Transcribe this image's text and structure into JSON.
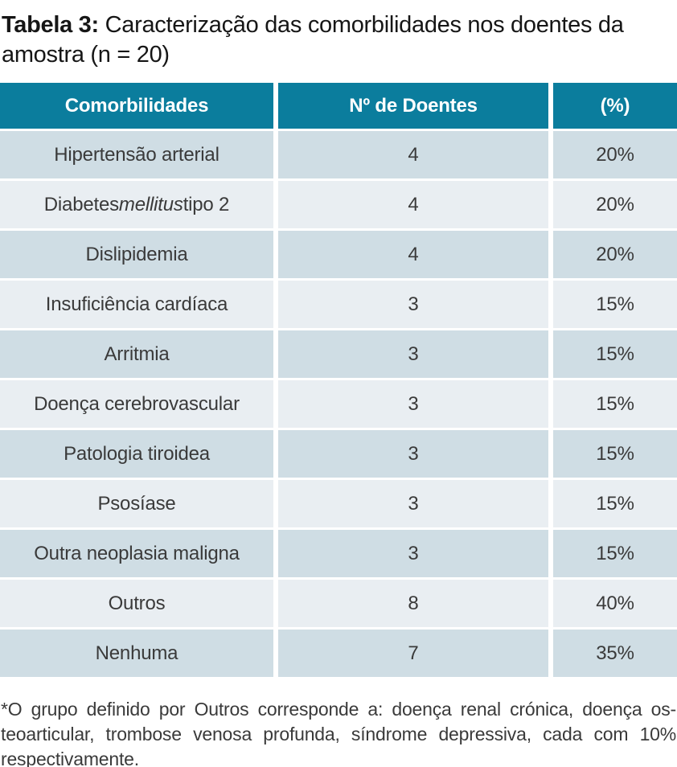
{
  "colors": {
    "page_bg": "#ffffff",
    "header_bg": "#0b7d9d",
    "header_text": "#ffffff",
    "row_dark": "#cfdde4",
    "row_light": "#e9eef2",
    "text": "#3a3a3a",
    "title_text": "#161616"
  },
  "title": {
    "bold": "Tabela 3:",
    "line1_rest": " Caracterização das comorbilidades nos doentes da",
    "line2": "amostra (n = 20)"
  },
  "table": {
    "headers": [
      "Comorbilidades",
      "Nº de Doentes",
      "(%)"
    ],
    "rows": [
      {
        "label_parts": [
          {
            "text": "Hipertensão arterial"
          }
        ],
        "n": "4",
        "pct": "20%"
      },
      {
        "label_parts": [
          {
            "text": "Diabetes "
          },
          {
            "text": "mellitus",
            "italic": true
          },
          {
            "text": " tipo 2"
          }
        ],
        "n": "4",
        "pct": "20%"
      },
      {
        "label_parts": [
          {
            "text": "Dislipidemia"
          }
        ],
        "n": "4",
        "pct": "20%"
      },
      {
        "label_parts": [
          {
            "text": "Insuficiência cardíaca"
          }
        ],
        "n": "3",
        "pct": "15%"
      },
      {
        "label_parts": [
          {
            "text": "Arritmia"
          }
        ],
        "n": "3",
        "pct": "15%"
      },
      {
        "label_parts": [
          {
            "text": "Doença cerebrovascular"
          }
        ],
        "n": "3",
        "pct": "15%"
      },
      {
        "label_parts": [
          {
            "text": "Patologia tiroidea"
          }
        ],
        "n": "3",
        "pct": "15%"
      },
      {
        "label_parts": [
          {
            "text": "Psosíase"
          }
        ],
        "n": "3",
        "pct": "15%"
      },
      {
        "label_parts": [
          {
            "text": "Outra neoplasia maligna"
          }
        ],
        "n": "3",
        "pct": "15%"
      },
      {
        "label_parts": [
          {
            "text": "Outros"
          }
        ],
        "n": "8",
        "pct": "40%"
      },
      {
        "label_parts": [
          {
            "text": "Nenhuma"
          }
        ],
        "n": "7",
        "pct": "35%"
      }
    ]
  },
  "footnote": {
    "lines": [
      "*O grupo definido por Outros corresponde a: doença renal crónica, doença os-",
      "teoarticular, trombose venosa profunda, síndrome depressiva, cada com 10%",
      "respectivamente."
    ]
  }
}
